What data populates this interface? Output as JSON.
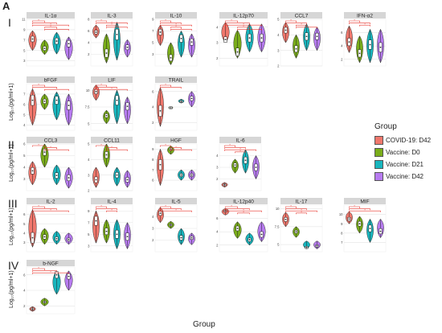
{
  "figure": {
    "panel_label": "A",
    "row_labels": [
      "I",
      "II",
      "III",
      "IV"
    ],
    "ylabel": "Log₁₀(pg/ml+1)",
    "xlabel": "Group"
  },
  "legend": {
    "title": "Group",
    "items": [
      {
        "label": "COVID-19: D42",
        "color": "#f0776c"
      },
      {
        "label": "Vaccine: D0",
        "color": "#7aad1a"
      },
      {
        "label": "Vaccine: D21",
        "color": "#18b5bd"
      },
      {
        "label": "Vaccine: D42",
        "color": "#b77bf0"
      }
    ]
  },
  "colors": {
    "strip": "#d6d6d6",
    "sig_bracket": "#e8322a",
    "grid": "#e4e4e4"
  },
  "chart_data": [
    {
      "type": "violin",
      "title": "IL-1α",
      "ylim": [
        2,
        11
      ],
      "yticks": [
        3,
        5,
        7,
        9,
        11
      ],
      "medians": [
        7.2,
        5.4,
        6.8,
        6.3
      ],
      "ranges": [
        [
          5,
          8.8
        ],
        [
          4.2,
          7
        ],
        [
          4.3,
          8.5
        ],
        [
          3.2,
          7.6
        ]
      ],
      "sig_pairs": [
        [
          0,
          1
        ],
        [
          0,
          2
        ],
        [
          0,
          3
        ],
        [
          1,
          2
        ],
        [
          1,
          3
        ]
      ]
    },
    {
      "type": "violin",
      "title": "IL-3",
      "ylim": [
        0,
        8
      ],
      "yticks": [
        2,
        4,
        6,
        8
      ],
      "medians": [
        5.8,
        2.2,
        5.4,
        3.2
      ],
      "ranges": [
        [
          4.8,
          7
        ],
        [
          0.5,
          5.5
        ],
        [
          1,
          7.5
        ],
        [
          1.5,
          4.5
        ]
      ],
      "sig_pairs": [
        [
          0,
          1
        ],
        [
          0,
          3
        ],
        [
          1,
          2
        ],
        [
          1,
          3
        ]
      ]
    },
    {
      "type": "violin",
      "title": "IL-10",
      "ylim": [
        1,
        9
      ],
      "yticks": [
        3,
        5,
        7,
        9
      ],
      "medians": [
        6.8,
        2.4,
        5.7,
        5.1
      ],
      "ranges": [
        [
          4.5,
          8
        ],
        [
          1.2,
          5
        ],
        [
          2.5,
          7
        ],
        [
          2.5,
          6.5
        ]
      ],
      "sig_pairs": [
        [
          0,
          1
        ],
        [
          0,
          2
        ],
        [
          0,
          3
        ],
        [
          1,
          2
        ],
        [
          1,
          3
        ]
      ]
    },
    {
      "type": "violin",
      "title": "IL-12p70",
      "ylim": [
        1.5,
        4.5
      ],
      "yticks": [
        2,
        3,
        4
      ],
      "medians": [
        3.2,
        2.4,
        3.3,
        3.3
      ],
      "ranges": [
        [
          3,
          4.3
        ],
        [
          2,
          3.8
        ],
        [
          2.4,
          4.2
        ],
        [
          2.4,
          4.2
        ]
      ],
      "sig_pairs": [
        [
          0,
          1
        ],
        [
          0,
          2
        ],
        [
          0,
          3
        ],
        [
          1,
          2
        ],
        [
          1,
          3
        ]
      ]
    },
    {
      "type": "violin",
      "title": "CCL7",
      "ylim": [
        2,
        5
      ],
      "yticks": [
        2,
        3,
        4,
        5
      ],
      "medians": [
        4.3,
        3.1,
        3.9,
        3.9
      ],
      "ranges": [
        [
          3.5,
          4.8
        ],
        [
          2.5,
          4
        ],
        [
          3,
          4.7
        ],
        [
          3,
          4.5
        ]
      ],
      "sig_pairs": [
        [
          0,
          1
        ],
        [
          0,
          2
        ],
        [
          1,
          2
        ],
        [
          1,
          3
        ]
      ]
    },
    {
      "type": "violin",
      "title": "IFN-α2",
      "ylim": [
        1,
        8
      ],
      "yticks": [
        2,
        4,
        6
      ],
      "medians": [
        4.6,
        2.9,
        4.2,
        3.8
      ],
      "ranges": [
        [
          3,
          7
        ],
        [
          1.5,
          5.5
        ],
        [
          1.5,
          6.5
        ],
        [
          1.5,
          6.5
        ]
      ],
      "sig_pairs": [
        [
          0,
          1
        ],
        [
          0,
          2
        ],
        [
          1,
          2
        ]
      ]
    },
    {
      "type": "violin",
      "title": "bFGF",
      "ylim": [
        3.5,
        8
      ],
      "yticks": [
        4,
        5,
        6,
        7
      ],
      "medians": [
        6.4,
        6.3,
        6.4,
        5.9
      ],
      "ranges": [
        [
          4,
          7.5
        ],
        [
          5.5,
          7
        ],
        [
          4.5,
          7.2
        ],
        [
          4,
          7
        ]
      ],
      "sig_pairs": [
        [
          0,
          1
        ],
        [
          0,
          2
        ],
        [
          1,
          3
        ]
      ]
    },
    {
      "type": "violin",
      "title": "LIF",
      "ylim": [
        4,
        11
      ],
      "yticks": [
        5,
        7.5,
        10
      ],
      "medians": [
        9.8,
        6.2,
        8.5,
        7.6
      ],
      "ranges": [
        [
          8.5,
          10.8
        ],
        [
          5,
          7
        ],
        [
          5,
          10
        ],
        [
          5,
          9
        ]
      ],
      "sig_pairs": [
        [
          0,
          1
        ],
        [
          0,
          2
        ],
        [
          0,
          3
        ]
      ]
    },
    {
      "type": "violin",
      "title": "TRAIL",
      "ylim": [
        1,
        7
      ],
      "yticks": [
        2,
        4,
        6
      ],
      "medians": [
        3.5,
        3.9,
        4.7,
        5.1
      ],
      "ranges": [
        [
          1.5,
          6.5
        ],
        [
          3.8,
          4
        ],
        [
          4.5,
          5
        ],
        [
          4,
          6
        ]
      ],
      "sig_pairs": [
        [
          0,
          1
        ],
        [
          0,
          2
        ]
      ]
    },
    {
      "type": "violin",
      "title": "CCL3",
      "ylim": [
        2,
        6
      ],
      "yticks": [
        3,
        4,
        5,
        6
      ],
      "medians": [
        3.7,
        5.3,
        3.3,
        3.1
      ],
      "ranges": [
        [
          2.5,
          4.5
        ],
        [
          4,
          6
        ],
        [
          2.5,
          4.2
        ],
        [
          2.2,
          4
        ]
      ],
      "sig_pairs": [
        [
          0,
          1
        ],
        [
          1,
          2
        ],
        [
          1,
          3
        ]
      ]
    },
    {
      "type": "violin",
      "title": "CCL11",
      "ylim": [
        2,
        5
      ],
      "yticks": [
        2,
        3,
        4,
        5
      ],
      "medians": [
        2.7,
        4.3,
        3,
        2.7
      ],
      "ranges": [
        [
          2.2,
          3.5
        ],
        [
          3.5,
          5
        ],
        [
          2.3,
          3.5
        ],
        [
          2.2,
          3.3
        ]
      ],
      "sig_pairs": [
        [
          0,
          1
        ],
        [
          1,
          2
        ],
        [
          1,
          3
        ]
      ]
    },
    {
      "type": "violin",
      "title": "HGF",
      "ylim": [
        5,
        9.5
      ],
      "yticks": [
        6,
        7,
        8,
        9
      ],
      "medians": [
        7.5,
        9,
        6.5,
        6.5
      ],
      "ranges": [
        [
          5.5,
          9
        ],
        [
          8.5,
          9.3
        ],
        [
          6,
          7
        ],
        [
          6,
          7
        ]
      ],
      "sig_pairs": [
        [
          0,
          1
        ],
        [
          1,
          2
        ],
        [
          1,
          3
        ]
      ]
    },
    {
      "type": "violin",
      "title": "IL-6",
      "ylim": [
        1,
        5
      ],
      "yticks": [
        2,
        3,
        4
      ],
      "medians": [
        1.5,
        3.2,
        3.6,
        3
      ],
      "ranges": [
        [
          1.3,
          1.7
        ],
        [
          2.5,
          3.7
        ],
        [
          2.5,
          4.5
        ],
        [
          2,
          4
        ]
      ],
      "sig_pairs": [
        [
          0,
          1
        ],
        [
          0,
          2
        ],
        [
          0,
          3
        ],
        [
          1,
          2
        ]
      ]
    },
    {
      "type": "violin",
      "title": "IL-2",
      "ylim": [
        2,
        7
      ],
      "yticks": [
        3,
        4,
        5,
        6
      ],
      "medians": [
        3.5,
        3.6,
        3.4,
        3.3
      ],
      "ranges": [
        [
          2.5,
          6.5
        ],
        [
          2.8,
          4.5
        ],
        [
          2.8,
          4.2
        ],
        [
          2.8,
          4
        ]
      ],
      "sig_pairs": [
        [
          0,
          1
        ],
        [
          0,
          2
        ],
        [
          0,
          3
        ]
      ]
    },
    {
      "type": "violin",
      "title": "IL-4",
      "ylim": [
        2,
        10
      ],
      "yticks": [
        3,
        5,
        7,
        9
      ],
      "medians": [
        7.3,
        5.5,
        5,
        4.6
      ],
      "ranges": [
        [
          3.5,
          9
        ],
        [
          3.5,
          7.5
        ],
        [
          2.5,
          7.5
        ],
        [
          2.5,
          7
        ]
      ],
      "sig_pairs": [
        [
          0,
          1
        ],
        [
          0,
          2
        ],
        [
          1,
          2
        ]
      ]
    },
    {
      "type": "violin",
      "title": "IL-5",
      "ylim": [
        1,
        5
      ],
      "yticks": [
        2,
        3,
        4
      ],
      "medians": [
        4.3,
        3.3,
        2.2,
        2.2
      ],
      "ranges": [
        [
          3.5,
          4.8
        ],
        [
          3,
          3.6
        ],
        [
          1.6,
          3
        ],
        [
          1.6,
          2.6
        ]
      ],
      "sig_pairs": [
        [
          0,
          1
        ],
        [
          0,
          2
        ],
        [
          0,
          3
        ]
      ]
    },
    {
      "type": "violin",
      "title": "IL-12p40",
      "ylim": [
        1,
        8
      ],
      "yticks": [
        2,
        4,
        6
      ],
      "medians": [
        7.1,
        4.5,
        2.8,
        3.6
      ],
      "ranges": [
        [
          6.5,
          7.5
        ],
        [
          3,
          5.5
        ],
        [
          2,
          3.8
        ],
        [
          2.5,
          5.5
        ]
      ],
      "sig_pairs": [
        [
          0,
          1
        ],
        [
          0,
          2
        ],
        [
          0,
          3
        ],
        [
          1,
          2
        ]
      ]
    },
    {
      "type": "violin",
      "title": "IL-17",
      "ylim": [
        4,
        10.5
      ],
      "yticks": [
        5,
        7.5,
        10
      ],
      "medians": [
        8.5,
        6.8,
        4.6,
        4.8
      ],
      "ranges": [
        [
          7.5,
          9.5
        ],
        [
          6,
          7.5
        ],
        [
          4.4,
          5.5
        ],
        [
          4.4,
          5.5
        ]
      ],
      "sig_pairs": [
        [
          0,
          1
        ],
        [
          0,
          2
        ],
        [
          0,
          3
        ],
        [
          1,
          2
        ]
      ]
    },
    {
      "type": "violin",
      "title": "MIF",
      "ylim": [
        6,
        11
      ],
      "yticks": [
        7,
        8,
        9,
        10
      ],
      "medians": [
        9.5,
        9,
        8.5,
        8.2
      ],
      "ranges": [
        [
          9,
          10.3
        ],
        [
          8,
          9.8
        ],
        [
          7,
          9.5
        ],
        [
          7.5,
          9.5
        ]
      ],
      "sig_pairs": [
        [
          0,
          1
        ],
        [
          0,
          2
        ],
        [
          0,
          3
        ]
      ]
    },
    {
      "type": "violin",
      "title": "b-NGF",
      "ylim": [
        1,
        7
      ],
      "yticks": [
        2,
        4,
        6
      ],
      "medians": [
        1.6,
        2.5,
        6,
        5.8
      ],
      "ranges": [
        [
          1.3,
          1.9
        ],
        [
          2,
          3
        ],
        [
          3.5,
          6.5
        ],
        [
          4,
          6.5
        ]
      ],
      "sig_pairs": [
        [
          0,
          1
        ],
        [
          0,
          2
        ],
        [
          0,
          3
        ]
      ]
    }
  ]
}
